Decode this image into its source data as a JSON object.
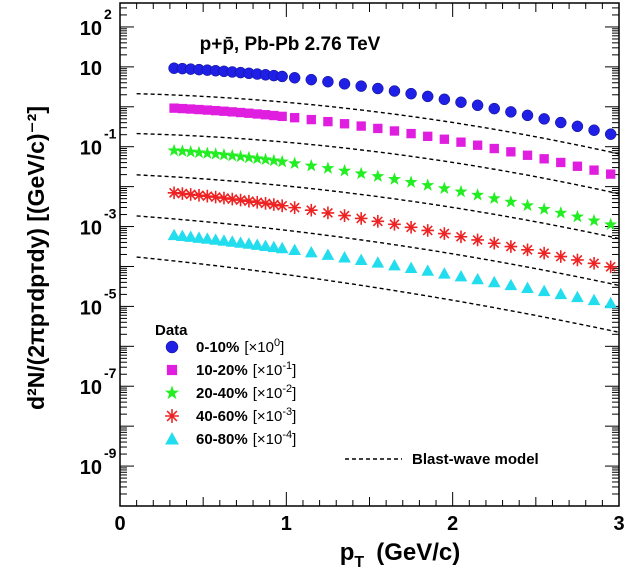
{
  "chart_data": {
    "type": "scatter",
    "title": "p+p̄, Pb-Pb 2.76 TeV",
    "xlabel": "p",
    "xlabel_sub": "T",
    "xlabel_unit": "(GeV/c)",
    "ylabel": "d²N/(2πpᴛdpᴛdy)  [(GeV/c)⁻²]",
    "xlim": [
      0,
      3
    ],
    "ylog": true,
    "ylim_log10": [
      -10,
      2.6
    ],
    "x_ticks": [
      {
        "value": 0,
        "label": "0"
      },
      {
        "value": 1,
        "label": "1"
      },
      {
        "value": 2,
        "label": "2"
      },
      {
        "value": 3,
        "label": "3"
      }
    ],
    "y_ticks": [
      {
        "exp": 2,
        "base": "10",
        "sup": "2"
      },
      {
        "exp": 1,
        "base": "10",
        "sup": ""
      },
      {
        "exp": -1,
        "base": "10",
        "sup": "-1"
      },
      {
        "exp": -3,
        "base": "10",
        "sup": "-3"
      },
      {
        "exp": -5,
        "base": "10",
        "sup": "-5"
      },
      {
        "exp": -7,
        "base": "10",
        "sup": "-7"
      },
      {
        "exp": -9,
        "base": "10",
        "sup": "-9"
      }
    ],
    "model_x_range": [
      0.1,
      3.0
    ],
    "legend": {
      "title": "Data",
      "model_label": "Blast-wave model",
      "position": "bottom-left"
    },
    "series": [
      {
        "name": "0-10%",
        "scale_label": "[×10",
        "scale_sup": "0",
        "scale_close": "]",
        "marker": "circle",
        "color": "#1f1fe6",
        "log_offset": 0.3,
        "slope": 0.17,
        "curvature": 0.14,
        "x": [
          0.325,
          0.375,
          0.425,
          0.475,
          0.525,
          0.575,
          0.625,
          0.675,
          0.725,
          0.775,
          0.825,
          0.875,
          0.925,
          0.975,
          1.05,
          1.15,
          1.25,
          1.35,
          1.45,
          1.55,
          1.65,
          1.75,
          1.85,
          1.95,
          2.05,
          2.15,
          2.25,
          2.35,
          2.45,
          2.55,
          2.65,
          2.75,
          2.85,
          2.95
        ],
        "y": [
          9.25,
          9.02,
          8.78,
          8.53,
          8.27,
          8.01,
          7.74,
          7.46,
          7.18,
          6.9,
          6.61,
          6.33,
          6.04,
          5.76,
          5.33,
          4.78,
          4.25,
          3.76,
          3.29,
          2.87,
          2.48,
          2.13,
          1.82,
          1.54,
          1.3,
          1.09,
          0.9,
          0.745,
          0.611,
          0.498,
          0.403,
          0.324,
          0.259,
          0.206
        ]
      },
      {
        "name": "10-20%",
        "scale_label": "[×10",
        "scale_sup": "-1",
        "scale_close": "]",
        "marker": "square",
        "color": "#e01ee0",
        "log_offset": -0.7,
        "slope": 0.17,
        "curvature": 0.14,
        "x": [
          0.325,
          0.375,
          0.425,
          0.475,
          0.525,
          0.575,
          0.625,
          0.675,
          0.725,
          0.775,
          0.825,
          0.875,
          0.925,
          0.975,
          1.05,
          1.15,
          1.25,
          1.35,
          1.45,
          1.55,
          1.65,
          1.75,
          1.85,
          1.95,
          2.05,
          2.15,
          2.25,
          2.35,
          2.45,
          2.55,
          2.65,
          2.75,
          2.85,
          2.95
        ],
        "y": [
          0.925,
          0.902,
          0.878,
          0.853,
          0.827,
          0.801,
          0.774,
          0.746,
          0.718,
          0.69,
          0.661,
          0.633,
          0.604,
          0.576,
          0.533,
          0.478,
          0.425,
          0.376,
          0.329,
          0.287,
          0.248,
          0.213,
          0.182,
          0.154,
          0.13,
          0.109,
          0.09,
          0.0745,
          0.0611,
          0.0498,
          0.0403,
          0.0324,
          0.0259,
          0.0206
        ]
      },
      {
        "name": "20-40%",
        "scale_label": "[×10",
        "scale_sup": "-2",
        "scale_close": "]",
        "marker": "star",
        "color": "#22ee22",
        "log_offset": -1.75,
        "slope": 0.25,
        "curvature": 0.12,
        "x": [
          0.325,
          0.375,
          0.425,
          0.475,
          0.525,
          0.575,
          0.625,
          0.675,
          0.725,
          0.775,
          0.825,
          0.875,
          0.925,
          0.975,
          1.05,
          1.15,
          1.25,
          1.35,
          1.45,
          1.55,
          1.65,
          1.75,
          1.85,
          1.95,
          2.05,
          2.15,
          2.25,
          2.35,
          2.45,
          2.55,
          2.65,
          2.75,
          2.85,
          2.95
        ],
        "y": [
          0.0801,
          0.0772,
          0.0743,
          0.0713,
          0.0683,
          0.0653,
          0.0623,
          0.0593,
          0.0563,
          0.0533,
          0.0504,
          0.0475,
          0.0447,
          0.042,
          0.038,
          0.0332,
          0.0288,
          0.0248,
          0.0212,
          0.0181,
          0.0153,
          0.0129,
          0.0108,
          0.009,
          0.00746,
          0.00616,
          0.00506,
          0.00413,
          0.00336,
          0.00272,
          0.00219,
          0.00176,
          0.0014,
          0.00112
        ]
      },
      {
        "name": "40-60%",
        "scale_label": "[×10",
        "scale_sup": "-3",
        "scale_close": "]",
        "marker": "asterisk",
        "color": "#ee2222",
        "log_offset": -2.8,
        "slope": 0.35,
        "curvature": 0.1,
        "x": [
          0.325,
          0.375,
          0.425,
          0.475,
          0.525,
          0.575,
          0.625,
          0.675,
          0.725,
          0.775,
          0.825,
          0.875,
          0.925,
          0.975,
          1.05,
          1.15,
          1.25,
          1.35,
          1.45,
          1.55,
          1.65,
          1.75,
          1.85,
          1.95,
          2.05,
          2.15,
          2.25,
          2.35,
          2.45,
          2.55,
          2.65,
          2.75,
          2.85,
          2.95
        ],
        "y": [
          0.00701,
          0.0067,
          0.00639,
          0.00608,
          0.00578,
          0.00548,
          0.00518,
          0.00489,
          0.00461,
          0.00433,
          0.00406,
          0.00381,
          0.00356,
          0.00332,
          0.00298,
          0.00257,
          0.0022,
          0.00188,
          0.0016,
          0.00135,
          0.00114,
          0.000956,
          0.0008,
          0.000667,
          0.000555,
          0.000461,
          0.000382,
          0.000316,
          0.000261,
          0.000215,
          0.000177,
          0.000146,
          0.00012,
          9.83e-05
        ]
      },
      {
        "name": "60-80%",
        "scale_label": "[×10",
        "scale_sup": "-4",
        "scale_close": "]",
        "marker": "triangle",
        "color": "#22ddee",
        "log_offset": -3.85,
        "slope": 0.45,
        "curvature": 0.08,
        "x": [
          0.325,
          0.375,
          0.425,
          0.475,
          0.525,
          0.575,
          0.625,
          0.675,
          0.725,
          0.775,
          0.825,
          0.875,
          0.925,
          0.975,
          1.05,
          1.15,
          1.25,
          1.35,
          1.45,
          1.55,
          1.65,
          1.75,
          1.85,
          1.95,
          2.05,
          2.15,
          2.25,
          2.35,
          2.45,
          2.55,
          2.65,
          2.75,
          2.85,
          2.95
        ],
        "y": [
          0.000612,
          0.000582,
          0.000553,
          0.000524,
          0.000497,
          0.00047,
          0.000444,
          0.000419,
          0.000395,
          0.000372,
          0.000349,
          0.000328,
          0.000307,
          0.000288,
          0.00026,
          0.000226,
          0.000196,
          0.000169,
          0.000146,
          0.000125,
          0.000107,
          9.17e-05,
          7.82e-05,
          6.65e-05,
          5.65e-05,
          4.79e-05,
          4.05e-05,
          3.42e-05,
          2.89e-05,
          2.43e-05,
          2.04e-05,
          1.71e-05,
          1.44e-05,
          1.2e-05
        ]
      }
    ]
  }
}
